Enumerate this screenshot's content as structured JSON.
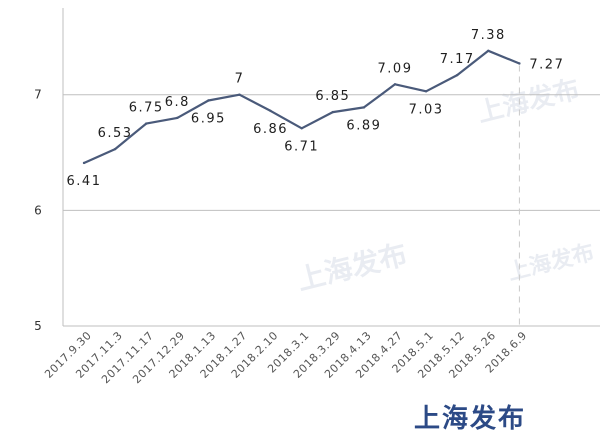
{
  "chart_data": {
    "type": "line",
    "categories": [
      "2017.9.30",
      "2017.11.3",
      "2017.11.17",
      "2017.12.29",
      "2018.1.13",
      "2018.1.27",
      "2018.2.10",
      "2018.3.1",
      "2018.3.29",
      "2018.4.13",
      "2018.4.27",
      "2018.5.1",
      "2018.5.12",
      "2018.5.26",
      "2018.6.9"
    ],
    "category_labels": [
      "2017.9.30",
      "2017.11.3",
      "2017.11.17",
      "2017.12.29",
      "2018.1.13",
      "2018.1.27",
      "2018.2.10",
      "2018.3.1",
      "2018.3.29",
      "2018.4.13",
      "2018.4.27",
      "2018.5.1",
      "2018.5.12",
      "2018.5.26",
      "2018.6.9"
    ],
    "series": [
      {
        "values": [
          6.41,
          6.53,
          6.75,
          6.8,
          6.95,
          7,
          6.86,
          6.71,
          6.85,
          6.89,
          7.09,
          7.03,
          7.17,
          7.38,
          7.27
        ]
      }
    ],
    "point_labels": [
      "6.41",
      "6.53",
      "6.75",
      "6.8",
      "6.95",
      "7",
      "6.86",
      "6.71",
      "6.85",
      "6.89",
      "7.09",
      "7.03",
      "7.17",
      "7.38",
      "7.27"
    ],
    "label_positions": [
      "below",
      "above",
      "above",
      "above",
      "below",
      "above",
      "below",
      "below",
      "above",
      "below",
      "above",
      "below",
      "above",
      "above",
      "right"
    ],
    "ylim": [
      5,
      7.75
    ],
    "yticks": [
      5,
      6,
      7
    ],
    "ytick_labels": [
      "5",
      "6",
      "7"
    ],
    "grid": "horizontal",
    "line_color": "#4a5a7a",
    "grid_color": "#bfbfbf",
    "guide_color": "#c8c8c8",
    "title": "",
    "xlabel": "",
    "ylabel": ""
  },
  "watermarks": [
    "上海发布",
    "上海发布",
    "上海发布"
  ],
  "brand": {
    "text": "上海发布",
    "color": "#2c4a86"
  }
}
